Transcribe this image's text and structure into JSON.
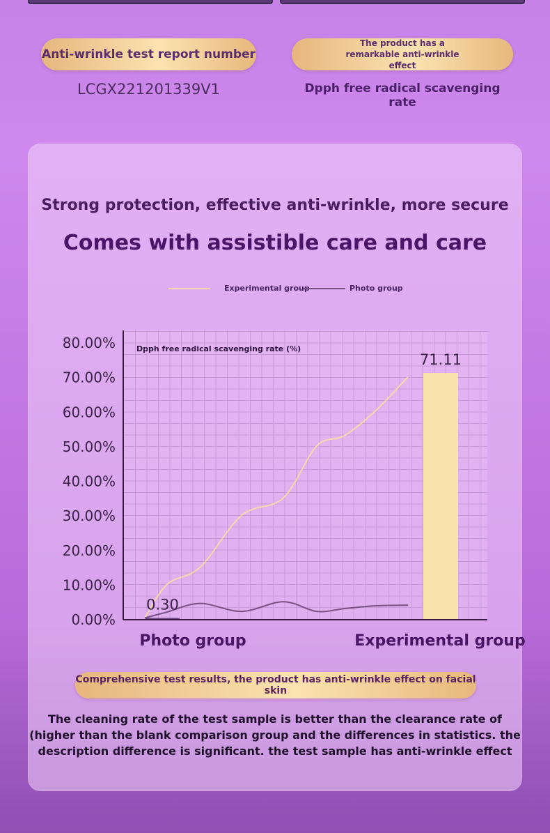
{
  "header": {
    "report_label": "Anti-wrinkle test report number",
    "report_number": "LCGX221201339V1",
    "effect_label": "The product has a remarkable anti-wrinkle effect",
    "rate_caption": "Dpph free radical scavenging rate"
  },
  "card": {
    "subtitle": "Strong protection, effective anti-wrinkle, more secure",
    "headline": "Comes with assistible care and care",
    "result_badge": "Comprehensive test results, the product has anti-wrinkle effect on facial skin",
    "conclusion": "The cleaning rate of the test sample is better than the clearance rate of (higher than the blank comparison group and the differences in statistics. the description difference is significant. the test sample has anti-wrinkle effect"
  },
  "colors": {
    "experimental": "#f7d9a9",
    "photo": "#7a4f86",
    "bar": "#f9e3ad",
    "grid": "#c89ad9",
    "axis": "#3a1a44"
  },
  "chart_data": {
    "type": "bar",
    "title": "Dpph free radical scavenging rate (%)",
    "categories": [
      "Photo group",
      "Experimental group"
    ],
    "values": [
      0.3,
      71.11
    ],
    "value_labels": [
      "0.30",
      "71.11"
    ],
    "ylim": [
      0,
      80
    ],
    "yticks": [
      "80.00%",
      "70.00%",
      "60.00%",
      "50.00%",
      "40.00%",
      "30.00%",
      "20.00%",
      "10.00%",
      "0.00%"
    ],
    "grid": true,
    "legend": {
      "position": "top",
      "entries": [
        {
          "name": "Experimental group",
          "color": "#f7d9a9"
        },
        {
          "name": "Photo group",
          "color": "#7a4f86"
        }
      ]
    },
    "series": [
      {
        "name": "Experimental group",
        "x": [
          0,
          0.08,
          0.2,
          0.35,
          0.5,
          0.62,
          0.72,
          0.83,
          0.95
        ],
        "values": [
          0.3,
          10,
          15,
          30,
          35,
          50,
          53,
          60,
          70
        ]
      },
      {
        "name": "Photo group",
        "x": [
          0,
          0.08,
          0.2,
          0.35,
          0.5,
          0.62,
          0.72,
          0.83,
          0.95
        ],
        "values": [
          0.3,
          2,
          4.5,
          2.2,
          5,
          2.2,
          3,
          3.8,
          4
        ]
      }
    ]
  }
}
